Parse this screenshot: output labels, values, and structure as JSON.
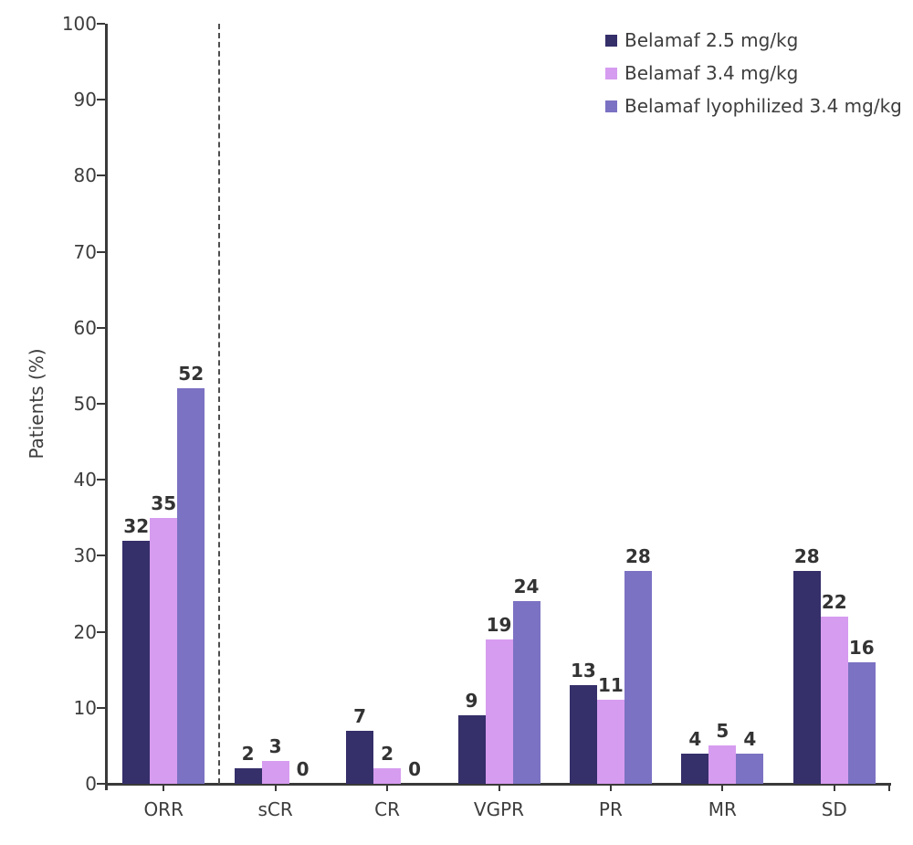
{
  "chart_data": {
    "type": "bar",
    "title": "",
    "xlabel": "",
    "ylabel": "Patients (%)",
    "ylim": [
      0,
      100
    ],
    "ytick_step": 10,
    "grid": false,
    "legend_position": "top-right",
    "bar_value_labels": true,
    "categories": [
      "ORR",
      "sCR",
      "CR",
      "VGPR",
      "PR",
      "MR",
      "SD"
    ],
    "series": [
      {
        "name": "Belamaf 2.5 mg/kg",
        "color": "#352F6A",
        "values": [
          32,
          2,
          7,
          9,
          13,
          4,
          28
        ]
      },
      {
        "name": "Belamaf 3.4 mg/kg",
        "color": "#D69CF0",
        "values": [
          35,
          3,
          2,
          19,
          11,
          5,
          22
        ]
      },
      {
        "name": "Belamaf lyophilized 3.4 mg/kg",
        "color": "#7B72C3",
        "values": [
          52,
          0,
          0,
          24,
          28,
          4,
          16
        ]
      }
    ],
    "separator": {
      "after_category_index": 0,
      "style": "dashed"
    }
  },
  "colors": {
    "axis": "#3a3a3a",
    "tick_text": "#3d3d3d",
    "value_label_text": "#333333",
    "separator": "#4f4f4f",
    "background": "#ffffff"
  }
}
